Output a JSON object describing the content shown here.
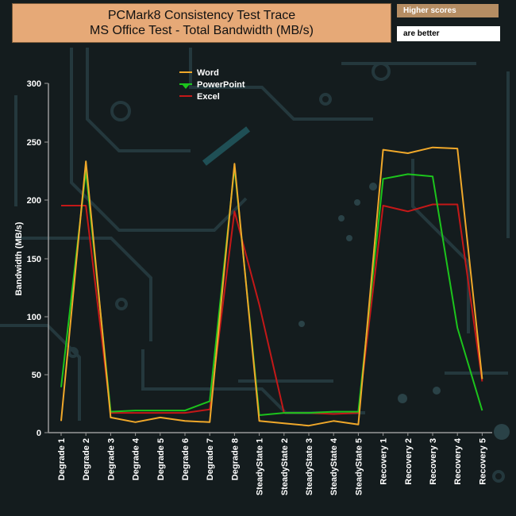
{
  "header": {
    "title_line1": "PCMark8 Consistency Test Trace",
    "title_line2": "MS Office Test - Total Bandwidth (MB/s)",
    "badge_line1": "Higher scores",
    "badge_line2": "are better"
  },
  "colors": {
    "background": "#141c1e",
    "circuit": "#24383d",
    "axis": "#9a9a9a",
    "title_bg": "#e6a977",
    "word": "#f0a82a",
    "powerpoint": "#1cc41c",
    "excel": "#c41818"
  },
  "chart_data": {
    "type": "line",
    "title": "PCMark8 Consistency Test Trace",
    "subtitle": "MS Office Test - Total Bandwidth (MB/s)",
    "xlabel": "",
    "ylabel": "Bandwidth (MB/s)",
    "ylim": [
      0,
      300
    ],
    "yticks": [
      0,
      50,
      100,
      150,
      200,
      250,
      300
    ],
    "grid": false,
    "legend_position": "top-left",
    "categories": [
      "Degrade 1",
      "Degrade 2",
      "Degrade 3",
      "Degrade 4",
      "Degrade 5",
      "Degrade 6",
      "Degrade 7",
      "Degrade 8",
      "SteadyState 1",
      "SteadyState 2",
      "SteadyState 3",
      "SteadyState 4",
      "SteadyState 5",
      "Recovery 1",
      "Recovery 2",
      "Recovery 3",
      "Recovery 4",
      "Recovery 5"
    ],
    "series": [
      {
        "name": "Word",
        "color": "#f0a82a",
        "values": [
          10,
          233,
          13,
          9,
          13,
          10,
          9,
          231,
          10,
          8,
          6,
          10,
          7,
          243,
          240,
          245,
          244,
          46
        ]
      },
      {
        "name": "PowerPoint",
        "color": "#1cc41c",
        "values": [
          39,
          225,
          18,
          19,
          19,
          19,
          27,
          228,
          15,
          17,
          17,
          18,
          18,
          218,
          222,
          220,
          90,
          19
        ]
      },
      {
        "name": "Excel",
        "color": "#c41818",
        "values": [
          195,
          195,
          17,
          17,
          17,
          17,
          20,
          190,
          110,
          17,
          17,
          16,
          17,
          195,
          190,
          196,
          196,
          44
        ]
      }
    ]
  }
}
